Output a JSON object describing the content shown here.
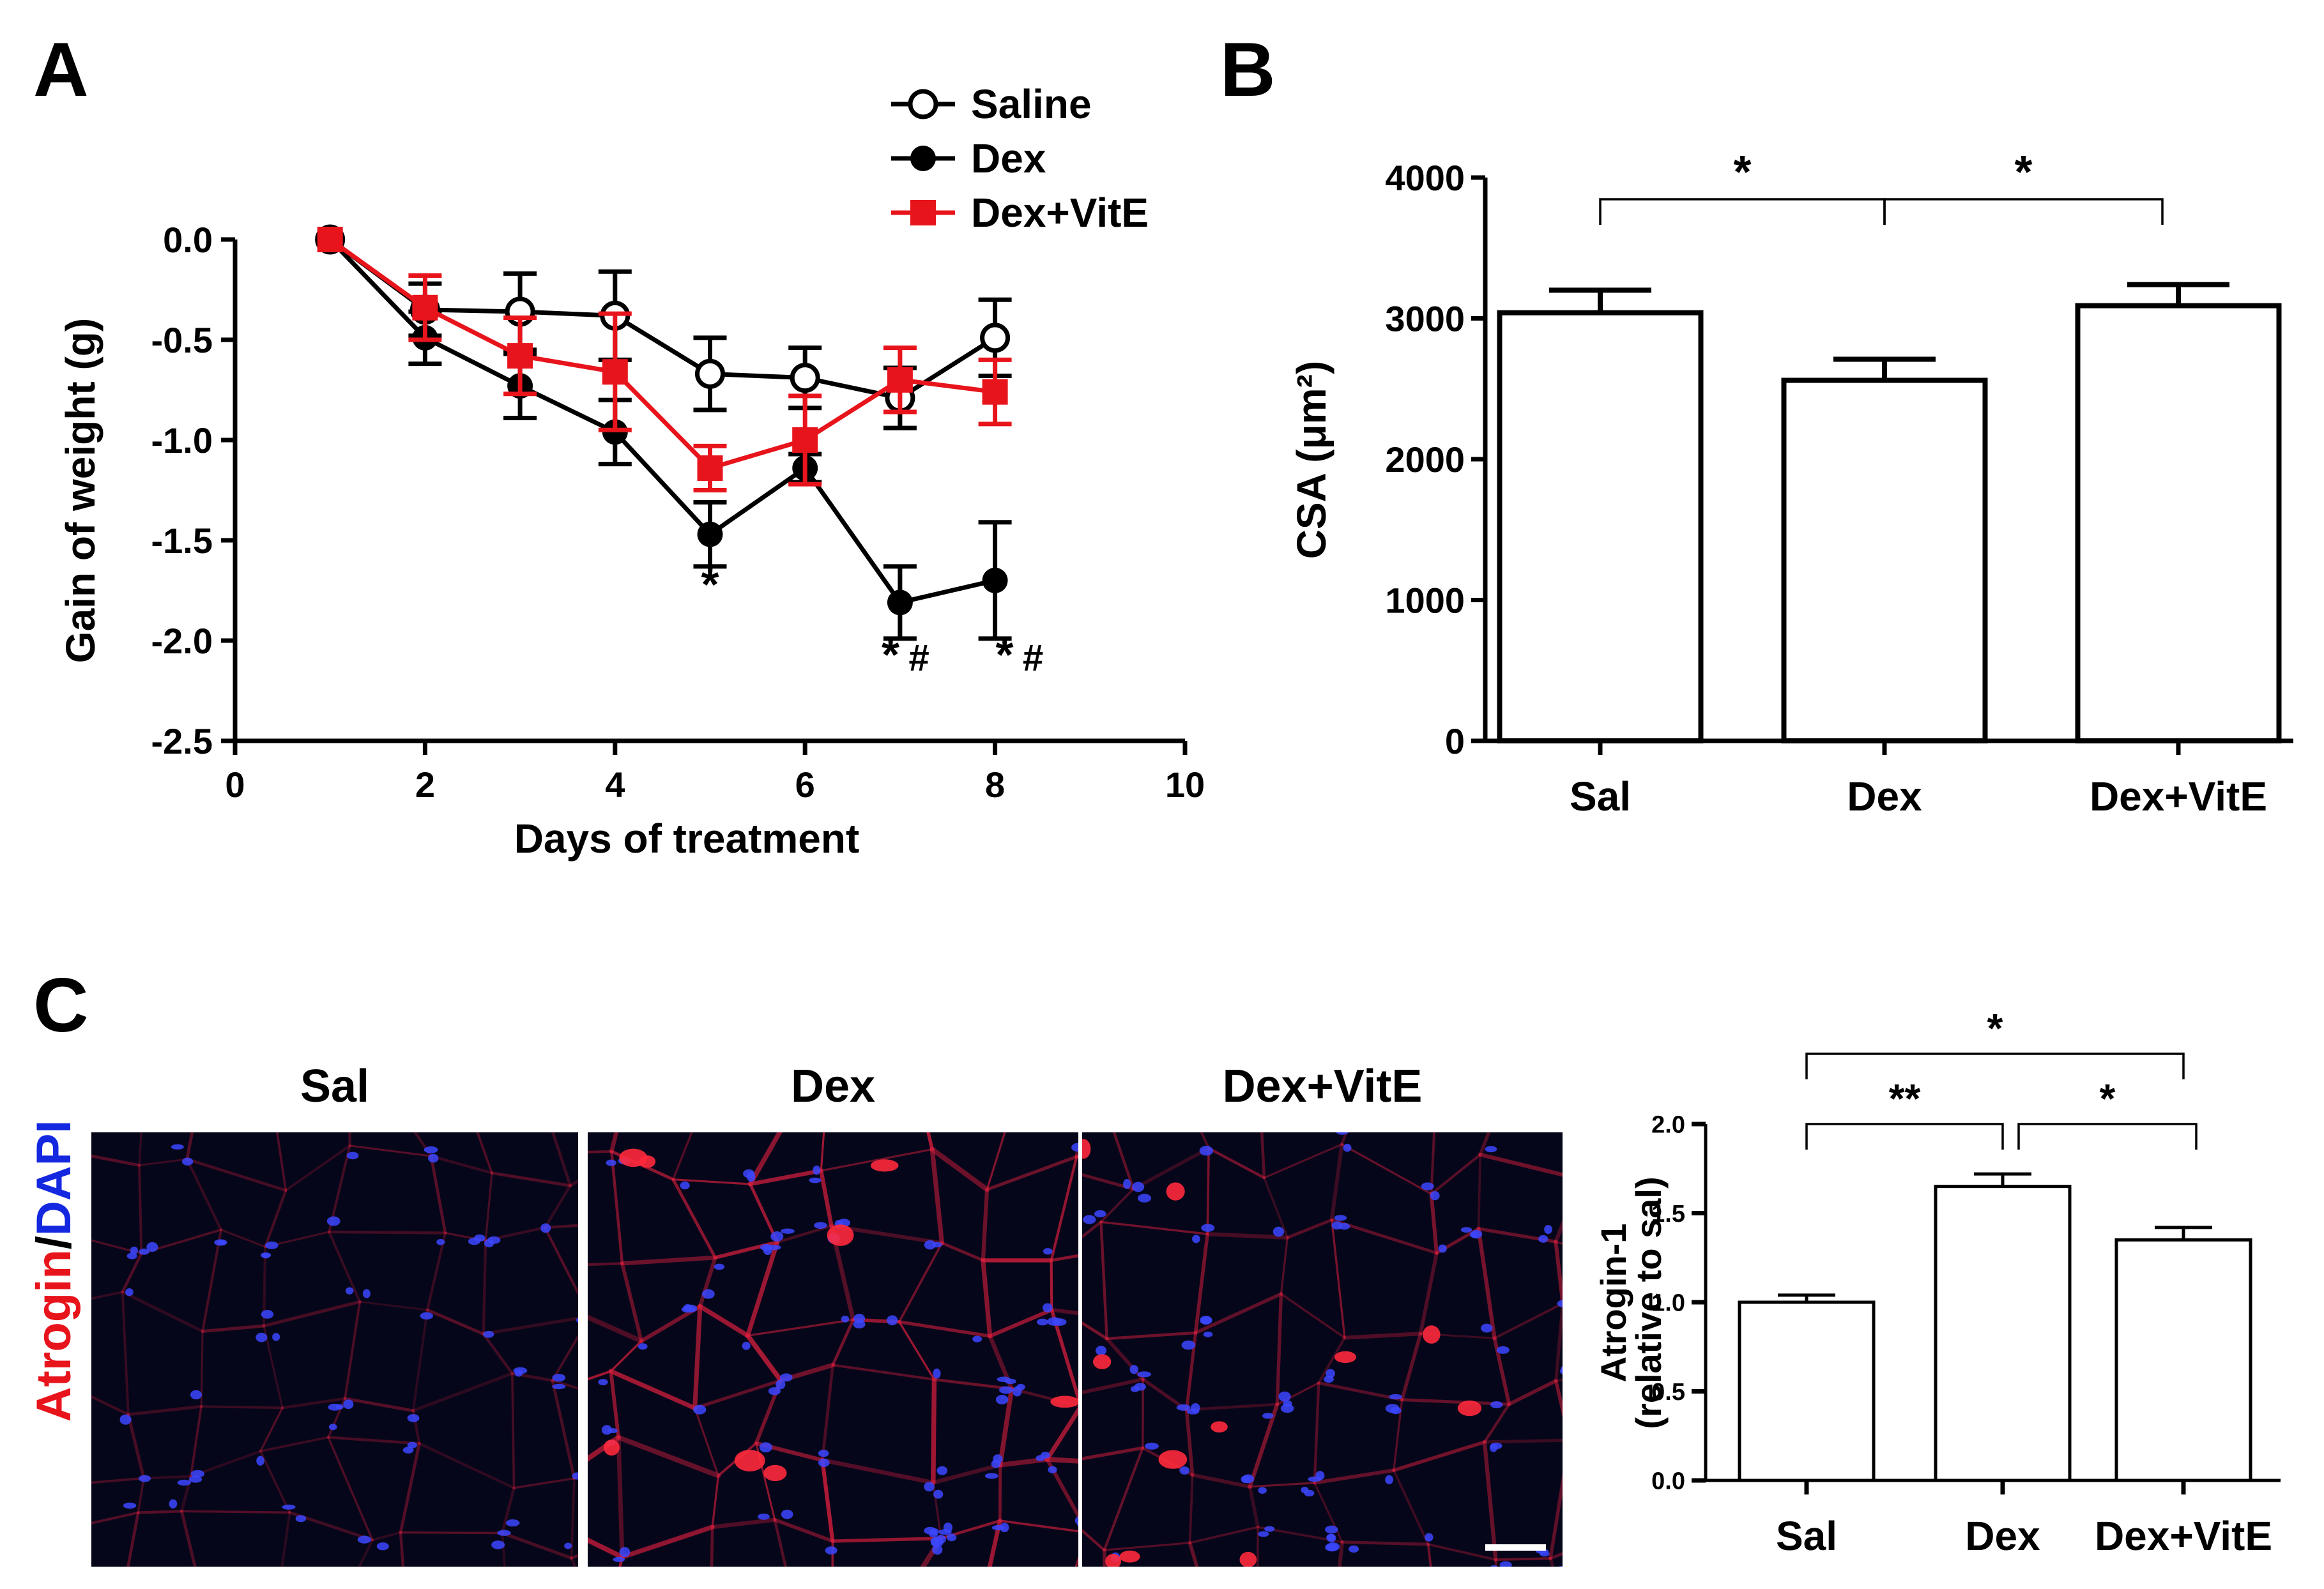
{
  "panels": {
    "a": {
      "letter": "A"
    },
    "b": {
      "letter": "B"
    },
    "c": {
      "letter": "C"
    }
  },
  "colors": {
    "saline": "#000000",
    "dex": "#000000",
    "dex_vite": "#e8141c",
    "micro_background": "#06061a",
    "micro_membrane": "#d21e3c",
    "micro_nuclei": "#3c46ff"
  },
  "micrographs": {
    "row_label_red": "Atrogin",
    "row_label_sep": "/",
    "row_label_blue": "DAPI",
    "images": [
      {
        "label": "Sal",
        "density": "sparse"
      },
      {
        "label": "Dex",
        "density": "dense"
      },
      {
        "label": "Dex+VitE",
        "density": "medium"
      }
    ],
    "scale_bar": true
  },
  "chart_data": [
    {
      "id": "A",
      "type": "line",
      "title": "",
      "xlabel": "Days of treatment",
      "ylabel": "Gain of weight (g)",
      "xlim": [
        0,
        10
      ],
      "ylim": [
        -2.5,
        0.0
      ],
      "xticks": [
        0,
        2,
        4,
        6,
        8,
        10
      ],
      "yticks": [
        0.0,
        -0.5,
        -1.0,
        -1.5,
        -2.0,
        -2.5
      ],
      "ytick_labels": [
        "0.0",
        "-0.5",
        "-1.0",
        "-1.5",
        "-2.0",
        "-2.5"
      ],
      "legend_position": "top-right",
      "series": [
        {
          "name": "Saline",
          "marker": "open-circle",
          "color": "#000000",
          "x": [
            1,
            2,
            3,
            4,
            5,
            6,
            7,
            8
          ],
          "y": [
            0.0,
            -0.35,
            -0.36,
            -0.38,
            -0.67,
            -0.69,
            -0.79,
            -0.49
          ],
          "err": [
            0.0,
            0.13,
            0.19,
            0.22,
            0.18,
            0.15,
            0.15,
            0.19
          ]
        },
        {
          "name": "Dex",
          "marker": "filled-circle",
          "color": "#000000",
          "x": [
            1,
            2,
            3,
            4,
            5,
            6,
            7,
            8
          ],
          "y": [
            0.0,
            -0.49,
            -0.73,
            -0.96,
            -1.47,
            -1.14,
            -1.81,
            -1.7
          ],
          "err": [
            0.0,
            0.13,
            0.16,
            0.16,
            0.16,
            0.07,
            0.18,
            0.29
          ]
        },
        {
          "name": "Dex+VitE",
          "marker": "filled-square",
          "color": "#e8141c",
          "x": [
            1,
            2,
            3,
            4,
            5,
            6,
            7,
            8
          ],
          "y": [
            0.0,
            -0.34,
            -0.58,
            -0.66,
            -1.14,
            -1.0,
            -0.7,
            -0.76
          ],
          "err": [
            0.0,
            0.16,
            0.19,
            0.29,
            0.11,
            0.22,
            0.16,
            0.16
          ]
        }
      ],
      "annotations": [
        {
          "x": 5,
          "y": -1.8,
          "text": "*"
        },
        {
          "x": 6.9,
          "y": -2.15,
          "text": "*"
        },
        {
          "x": 7.2,
          "y": -2.15,
          "text": "#"
        },
        {
          "x": 8.1,
          "y": -2.15,
          "text": "*"
        },
        {
          "x": 8.4,
          "y": -2.15,
          "text": "#"
        }
      ]
    },
    {
      "id": "B",
      "type": "bar",
      "title": "",
      "xlabel": "",
      "ylabel": "CSA (μm²)",
      "categories": [
        "Sal",
        "Dex",
        "Dex+VitE"
      ],
      "values": [
        3040,
        2560,
        3090
      ],
      "errors": [
        160,
        150,
        150
      ],
      "ylim": [
        0,
        4000
      ],
      "yticks": [
        0,
        1000,
        2000,
        3000,
        4000
      ],
      "ytick_labels": [
        "0",
        "1000",
        "2000",
        "3000",
        "4000"
      ],
      "significance": [
        {
          "from": 0,
          "to": 1,
          "label": "*"
        },
        {
          "from": 1,
          "to": 2,
          "label": "*"
        }
      ]
    },
    {
      "id": "C",
      "type": "bar",
      "title": "",
      "xlabel": "",
      "ylabel": "Atrogin-1",
      "ylabel_sub": "(relative to sal)",
      "categories": [
        "Sal",
        "Dex",
        "Dex+VitE"
      ],
      "values": [
        1.0,
        1.65,
        1.35
      ],
      "errors": [
        0.04,
        0.07,
        0.07
      ],
      "ylim": [
        0,
        2.0
      ],
      "yticks": [
        0.0,
        0.5,
        1.0,
        1.5,
        2.0
      ],
      "ytick_labels": [
        "0.0",
        "0.5",
        "1.0",
        "1.5",
        "2.0"
      ],
      "significance": [
        {
          "from": 0,
          "to": 2,
          "label": "*"
        },
        {
          "from": 0,
          "to": 1,
          "label": "**"
        },
        {
          "from": 1,
          "to": 2,
          "label": "*"
        }
      ]
    }
  ]
}
